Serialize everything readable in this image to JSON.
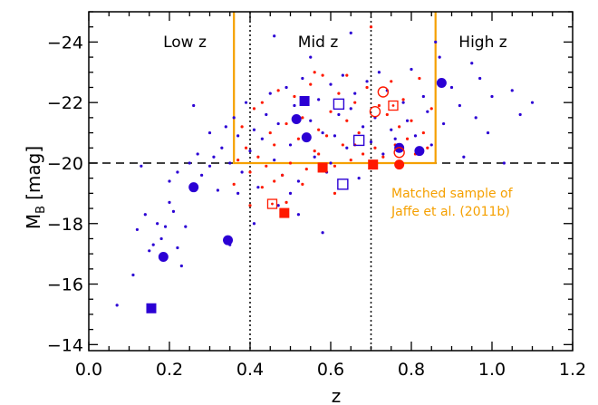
{
  "colors": {
    "blue": "#2b00d4",
    "red": "#ff1a00",
    "orange": "#f5a000",
    "black": "#000000"
  },
  "chart_data": {
    "type": "scatter",
    "xlim": [
      0.0,
      1.2
    ],
    "ylim": [
      -13.8,
      -25.0
    ],
    "y_inverted": true,
    "x_ticks": [
      "0.0",
      "0.2",
      "0.4",
      "0.6",
      "0.8",
      "1.0",
      "1.2"
    ],
    "y_ticks": [
      "−24",
      "−22",
      "−20",
      "−18",
      "−16",
      "−14"
    ],
    "y_tick_values": [
      -24,
      -22,
      -20,
      -18,
      -16,
      -14
    ],
    "x_tick_values": [
      0.0,
      0.2,
      0.4,
      0.6,
      0.8,
      1.0,
      1.2
    ],
    "xlabel": "z",
    "ylabel_main": "M",
    "ylabel_sub": "B",
    "ylabel_unit": "[mag]",
    "region_labels": [
      "Low z",
      "Mid z",
      "High z"
    ],
    "annotation_lines": [
      "Matched sample of",
      "Jaffe et al. (2011b)"
    ],
    "vertical_dotted_lines_x": [
      0.4,
      0.7
    ],
    "horizontal_dashed_line_y": -20.0,
    "matched_box": {
      "x_min": 0.36,
      "x_max": 0.86,
      "y_bright": -25.0,
      "y_faint": -20.0
    },
    "series": [
      {
        "color": "blue",
        "marker": "filled-circle",
        "points": [
          [
            0.185,
            -16.9
          ],
          [
            0.26,
            -19.2
          ],
          [
            0.345,
            -17.45
          ],
          [
            0.515,
            -21.45
          ],
          [
            0.54,
            -20.85
          ],
          [
            0.77,
            -20.5
          ],
          [
            0.82,
            -20.4
          ],
          [
            0.875,
            -22.65
          ]
        ]
      },
      {
        "color": "blue",
        "marker": "filled-square",
        "points": [
          [
            0.155,
            -15.2
          ],
          [
            0.535,
            -22.05
          ]
        ]
      },
      {
        "color": "blue",
        "marker": "open-square",
        "points": [
          [
            0.62,
            -21.95
          ],
          [
            0.67,
            -20.75
          ],
          [
            0.63,
            -19.3
          ]
        ]
      },
      {
        "color": "red",
        "marker": "filled-square",
        "points": [
          [
            0.485,
            -18.35
          ],
          [
            0.58,
            -19.85
          ],
          [
            0.705,
            -19.95
          ]
        ]
      },
      {
        "color": "red",
        "marker": "filled-circle",
        "points": [
          [
            0.77,
            -19.95
          ]
        ]
      },
      {
        "color": "red",
        "marker": "open-circle",
        "points": [
          [
            0.73,
            -22.35
          ],
          [
            0.71,
            -21.7
          ],
          [
            0.77,
            -20.35
          ]
        ]
      },
      {
        "color": "red",
        "marker": "open-square-dot",
        "points": [
          [
            0.455,
            -18.65
          ],
          [
            0.755,
            -21.9
          ]
        ]
      },
      {
        "color": "blue",
        "marker": "dot",
        "points": [
          [
            0.07,
            -15.3
          ],
          [
            0.11,
            -16.3
          ],
          [
            0.12,
            -17.8
          ],
          [
            0.14,
            -18.3
          ],
          [
            0.15,
            -17.1
          ],
          [
            0.16,
            -17.3
          ],
          [
            0.17,
            -18.0
          ],
          [
            0.18,
            -17.5
          ],
          [
            0.19,
            -17.9
          ],
          [
            0.2,
            -18.7
          ],
          [
            0.21,
            -18.4
          ],
          [
            0.22,
            -17.2
          ],
          [
            0.23,
            -16.6
          ],
          [
            0.24,
            -17.9
          ],
          [
            0.13,
            -19.9
          ],
          [
            0.2,
            -19.4
          ],
          [
            0.22,
            -19.7
          ],
          [
            0.25,
            -20.0
          ],
          [
            0.27,
            -20.3
          ],
          [
            0.28,
            -19.6
          ],
          [
            0.3,
            -19.9
          ],
          [
            0.31,
            -20.2
          ],
          [
            0.26,
            -21.9
          ],
          [
            0.32,
            -19.1
          ],
          [
            0.33,
            -20.5
          ],
          [
            0.34,
            -21.2
          ],
          [
            0.35,
            -20.0
          ],
          [
            0.36,
            -21.5
          ],
          [
            0.37,
            -20.9
          ],
          [
            0.38,
            -19.7
          ],
          [
            0.39,
            -22.0
          ],
          [
            0.4,
            -20.4
          ],
          [
            0.41,
            -21.1
          ],
          [
            0.42,
            -19.2
          ],
          [
            0.43,
            -20.8
          ],
          [
            0.44,
            -21.6
          ],
          [
            0.45,
            -22.3
          ],
          [
            0.46,
            -20.1
          ],
          [
            0.47,
            -21.3
          ],
          [
            0.48,
            -19.6
          ],
          [
            0.49,
            -22.5
          ],
          [
            0.5,
            -20.6
          ],
          [
            0.51,
            -21.9
          ],
          [
            0.52,
            -19.4
          ],
          [
            0.53,
            -22.8
          ],
          [
            0.55,
            -21.4
          ],
          [
            0.56,
            -20.2
          ],
          [
            0.57,
            -22.1
          ],
          [
            0.58,
            -21.0
          ],
          [
            0.59,
            -19.7
          ],
          [
            0.6,
            -22.6
          ],
          [
            0.61,
            -20.9
          ],
          [
            0.62,
            -21.6
          ],
          [
            0.63,
            -22.9
          ],
          [
            0.64,
            -20.5
          ],
          [
            0.65,
            -21.8
          ],
          [
            0.66,
            -22.3
          ],
          [
            0.67,
            -19.5
          ],
          [
            0.68,
            -21.2
          ],
          [
            0.69,
            -22.7
          ],
          [
            0.7,
            -20.7
          ],
          [
            0.71,
            -21.5
          ],
          [
            0.72,
            -23.0
          ],
          [
            0.73,
            -20.3
          ],
          [
            0.74,
            -22.4
          ],
          [
            0.75,
            -21.1
          ],
          [
            0.76,
            -20.8
          ],
          [
            0.78,
            -22.0
          ],
          [
            0.79,
            -21.4
          ],
          [
            0.8,
            -23.1
          ],
          [
            0.81,
            -20.9
          ],
          [
            0.83,
            -22.2
          ],
          [
            0.84,
            -21.7
          ],
          [
            0.85,
            -20.6
          ],
          [
            0.86,
            -24.0
          ],
          [
            0.88,
            -21.3
          ],
          [
            0.9,
            -22.5
          ],
          [
            0.92,
            -21.9
          ],
          [
            0.93,
            -20.2
          ],
          [
            0.95,
            -23.3
          ],
          [
            0.96,
            -21.5
          ],
          [
            0.97,
            -22.8
          ],
          [
            0.99,
            -21.0
          ],
          [
            1.0,
            -22.2
          ],
          [
            1.03,
            -20.0
          ],
          [
            1.05,
            -22.4
          ],
          [
            1.07,
            -21.6
          ],
          [
            1.1,
            -22.0
          ],
          [
            0.58,
            -17.7
          ],
          [
            0.52,
            -18.3
          ],
          [
            0.47,
            -18.6
          ],
          [
            0.35,
            -17.3
          ],
          [
            0.41,
            -18.0
          ],
          [
            0.3,
            -21.0
          ],
          [
            0.46,
            -24.2
          ],
          [
            0.55,
            -23.5
          ],
          [
            0.65,
            -24.3
          ],
          [
            0.87,
            -23.5
          ],
          [
            0.6,
            -20.0
          ],
          [
            0.37,
            -19.0
          ],
          [
            0.5,
            -19.0
          ]
        ]
      },
      {
        "color": "red",
        "marker": "dot",
        "points": [
          [
            0.36,
            -19.3
          ],
          [
            0.37,
            -20.1
          ],
          [
            0.38,
            -21.2
          ],
          [
            0.39,
            -20.5
          ],
          [
            0.4,
            -19.7
          ],
          [
            0.41,
            -21.8
          ],
          [
            0.42,
            -20.2
          ],
          [
            0.43,
            -22.0
          ],
          [
            0.44,
            -19.9
          ],
          [
            0.45,
            -21.0
          ],
          [
            0.46,
            -20.6
          ],
          [
            0.47,
            -22.4
          ],
          [
            0.48,
            -19.6
          ],
          [
            0.49,
            -21.3
          ],
          [
            0.5,
            -20.0
          ],
          [
            0.51,
            -22.2
          ],
          [
            0.52,
            -20.8
          ],
          [
            0.53,
            -21.5
          ],
          [
            0.54,
            -19.8
          ],
          [
            0.55,
            -22.6
          ],
          [
            0.56,
            -20.4
          ],
          [
            0.57,
            -21.1
          ],
          [
            0.58,
            -22.9
          ],
          [
            0.59,
            -20.9
          ],
          [
            0.6,
            -21.7
          ],
          [
            0.61,
            -19.9
          ],
          [
            0.62,
            -22.3
          ],
          [
            0.63,
            -20.6
          ],
          [
            0.64,
            -21.4
          ],
          [
            0.65,
            -20.1
          ],
          [
            0.66,
            -22.0
          ],
          [
            0.67,
            -21.0
          ],
          [
            0.68,
            -20.3
          ],
          [
            0.69,
            -22.5
          ],
          [
            0.7,
            -24.5
          ],
          [
            0.71,
            -20.5
          ],
          [
            0.72,
            -21.9
          ],
          [
            0.73,
            -20.2
          ],
          [
            0.74,
            -21.6
          ],
          [
            0.75,
            -22.7
          ],
          [
            0.76,
            -20.6
          ],
          [
            0.77,
            -21.2
          ],
          [
            0.78,
            -22.1
          ],
          [
            0.79,
            -20.8
          ],
          [
            0.8,
            -21.4
          ],
          [
            0.81,
            -20.3
          ],
          [
            0.82,
            -22.8
          ],
          [
            0.83,
            -21.0
          ],
          [
            0.84,
            -20.5
          ],
          [
            0.85,
            -21.8
          ],
          [
            0.43,
            -19.2
          ],
          [
            0.49,
            -18.7
          ],
          [
            0.53,
            -19.3
          ],
          [
            0.61,
            -19.0
          ],
          [
            0.4,
            -18.6
          ],
          [
            0.57,
            -20.3
          ],
          [
            0.46,
            -19.4
          ],
          [
            0.66,
            -20.6
          ],
          [
            0.56,
            -23.0
          ],
          [
            0.64,
            -22.9
          ]
        ]
      }
    ]
  }
}
